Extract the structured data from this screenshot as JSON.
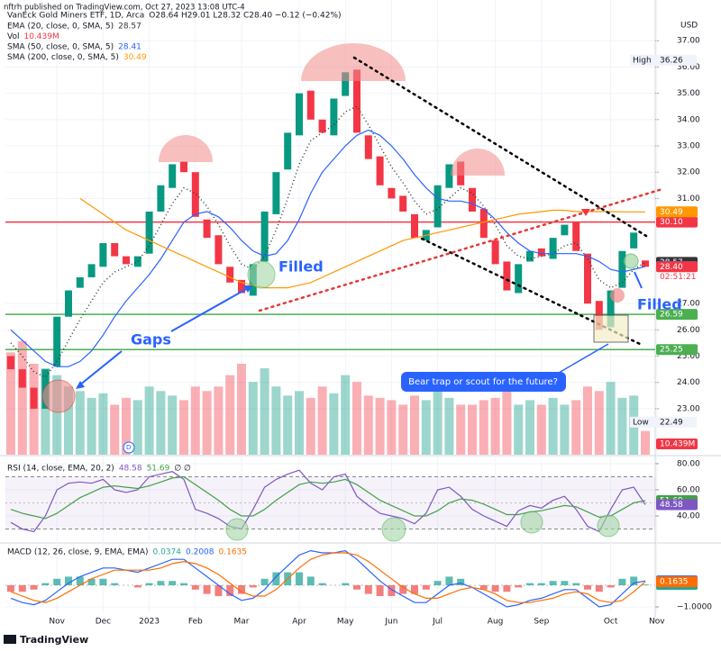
{
  "publisher": "nftrh published on TradingView.com, Oct 27, 2023 13:08 UTC-4",
  "footer": "TradingView",
  "annotations": [
    "Gaps",
    "Filled",
    "Filled",
    "Bear trap or scout for the future?"
  ],
  "chart_data": [
    {
      "type": "candlestick",
      "title": "VanEck Gold Miners ETF, 1D, Arca",
      "ohlc_label": "O28.64 H29.01 L28.32 C28.40 −0.12 (−0.42%)",
      "currency": "USD",
      "countdown": "02:51:21",
      "categories": [
        null,
        null,
        null,
        null,
        "Nov",
        null,
        null,
        null,
        "Dec",
        null,
        null,
        null,
        "2023",
        null,
        null,
        null,
        "Feb",
        null,
        null,
        null,
        "Mar",
        null,
        null,
        null,
        null,
        "Apr",
        null,
        null,
        null,
        "May",
        null,
        null,
        null,
        "Jun",
        null,
        null,
        null,
        "Jul",
        null,
        null,
        null,
        null,
        "Aug",
        null,
        null,
        null,
        "Sep",
        null,
        null,
        null,
        null,
        null,
        "Oct",
        null,
        null,
        null,
        "Nov"
      ],
      "open": [
        25.0,
        24.5,
        23.8,
        23.0,
        24.6,
        26.5,
        27.6,
        28.0,
        28.4,
        29.3,
        28.8,
        28.4,
        28.9,
        30.5,
        31.4,
        32.4,
        32.0,
        30.2,
        29.6,
        28.4,
        27.9,
        27.3,
        28.6,
        30.4,
        32.1,
        33.4,
        35.1,
        34.0,
        33.4,
        34.9,
        35.9,
        33.4,
        32.6,
        31.4,
        31.1,
        30.4,
        29.4,
        29.9,
        31.4,
        32.4,
        31.4,
        30.6,
        29.4,
        28.6,
        27.4,
        28.6,
        29.1,
        28.7,
        29.6,
        30.1,
        28.9,
        27.1,
        26.1,
        27.6,
        29.1,
        28.64,
        null
      ],
      "close": [
        24.5,
        23.8,
        23.0,
        24.5,
        26.5,
        27.5,
        28.0,
        28.5,
        29.3,
        28.8,
        28.5,
        28.8,
        30.5,
        31.5,
        32.3,
        32.0,
        30.3,
        29.5,
        28.5,
        27.8,
        27.4,
        28.5,
        30.5,
        32.0,
        33.5,
        35.0,
        34.0,
        33.5,
        34.8,
        35.8,
        33.5,
        32.5,
        31.5,
        31.0,
        30.5,
        29.5,
        29.8,
        31.5,
        32.3,
        31.5,
        30.5,
        29.5,
        28.5,
        27.5,
        28.5,
        29.0,
        28.8,
        29.5,
        30.0,
        29.0,
        27.0,
        26.0,
        27.5,
        29.0,
        29.7,
        28.4,
        null
      ],
      "close_labels": [
        null,
        null,
        null,
        null,
        null,
        null,
        null,
        null,
        null,
        null,
        null,
        null,
        null,
        null,
        null,
        null,
        null,
        null,
        null,
        null,
        null,
        null,
        null,
        null,
        null,
        null,
        null,
        null,
        null,
        null,
        null,
        null,
        null,
        null,
        null,
        null,
        null,
        null,
        null,
        null,
        null,
        null,
        null,
        null,
        null,
        null,
        null,
        null,
        null,
        null,
        null,
        null,
        null,
        null,
        null,
        "28.40",
        null
      ],
      "up_color": "#089981",
      "down_color": "#f23645",
      "series": [
        {
          "name": "EMA (20, close, 0, SMA, 5)",
          "color": "#333333",
          "style": "dotted",
          "values": [
            25.5,
            25.0,
            24.4,
            24.2,
            24.8,
            25.6,
            26.4,
            27.1,
            27.8,
            28.2,
            28.4,
            28.6,
            29.2,
            30.0,
            30.8,
            31.4,
            31.2,
            30.7,
            30.0,
            29.2,
            28.5,
            28.3,
            28.8,
            29.8,
            31.0,
            32.3,
            33.2,
            33.5,
            33.8,
            34.3,
            34.5,
            33.8,
            33.0,
            32.2,
            31.6,
            30.9,
            30.4,
            30.6,
            31.0,
            31.4,
            31.2,
            30.7,
            30.0,
            29.2,
            28.8,
            28.7,
            28.8,
            28.9,
            29.2,
            29.3,
            28.7,
            27.9,
            27.6,
            27.8,
            28.3,
            28.57,
            null
          ]
        },
        {
          "name": "SMA (50, close, 0, SMA, 5)",
          "color": "#2962ff",
          "style": "solid",
          "values": [
            26.0,
            25.6,
            25.2,
            24.8,
            24.6,
            24.6,
            24.8,
            25.2,
            25.8,
            26.5,
            27.1,
            27.6,
            28.1,
            28.7,
            29.4,
            30.1,
            30.4,
            30.5,
            30.3,
            29.9,
            29.4,
            29.0,
            28.8,
            28.9,
            29.4,
            30.2,
            31.2,
            32.0,
            32.5,
            33.0,
            33.4,
            33.6,
            33.4,
            33.0,
            32.5,
            31.9,
            31.4,
            31.0,
            30.9,
            30.9,
            30.8,
            30.6,
            30.2,
            29.7,
            29.3,
            29.0,
            28.9,
            28.9,
            28.9,
            28.9,
            28.8,
            28.6,
            28.3,
            28.2,
            28.3,
            28.41,
            null
          ]
        },
        {
          "name": "SMA (200, close, 0, SMA, 5)",
          "color": "#ff9800",
          "style": "solid",
          "values": [
            null,
            null,
            null,
            null,
            null,
            null,
            31.0,
            30.7,
            30.4,
            30.1,
            29.8,
            29.6,
            29.4,
            29.2,
            29.0,
            28.8,
            28.6,
            28.4,
            28.2,
            28.0,
            27.8,
            27.7,
            27.6,
            27.6,
            27.6,
            27.7,
            27.8,
            28.0,
            28.2,
            28.4,
            28.6,
            28.8,
            29.0,
            29.2,
            29.4,
            29.5,
            29.6,
            29.7,
            29.8,
            29.9,
            30.0,
            30.1,
            30.2,
            30.3,
            30.4,
            30.45,
            30.5,
            30.55,
            30.55,
            30.5,
            30.5,
            30.5,
            30.5,
            30.49,
            30.49,
            30.49,
            null
          ]
        }
      ],
      "volume": {
        "name": "Vol",
        "ylim": [
          0,
          200
        ],
        "values": [
          45,
          50,
          40,
          38,
          35,
          30,
          28,
          25,
          27,
          22,
          25,
          24,
          30,
          28,
          26,
          24,
          30,
          28,
          30,
          35,
          40,
          32,
          38,
          30,
          26,
          28,
          25,
          30,
          27,
          35,
          32,
          26,
          25,
          24,
          22,
          26,
          24,
          28,
          25,
          22,
          22,
          24,
          25,
          28,
          22,
          24,
          22,
          25,
          22,
          24,
          30,
          28,
          32,
          25,
          26,
          10.439,
          null
        ],
        "value_labels": [
          null,
          null,
          null,
          null,
          null,
          null,
          null,
          null,
          null,
          null,
          null,
          null,
          null,
          null,
          null,
          null,
          null,
          null,
          null,
          null,
          null,
          null,
          null,
          null,
          null,
          null,
          null,
          null,
          null,
          null,
          null,
          null,
          null,
          null,
          null,
          null,
          null,
          null,
          null,
          null,
          null,
          null,
          null,
          null,
          null,
          null,
          null,
          null,
          null,
          null,
          null,
          null,
          null,
          null,
          null,
          "10.439M",
          null
        ]
      },
      "high": {
        "label": "High",
        "value": 36.26
      },
      "low": {
        "label": "Low",
        "value": 22.49
      },
      "hlines": [
        {
          "value": 30.1,
          "label": "30.10",
          "color": "#f23645"
        },
        {
          "value": 26.59,
          "label": "26.59",
          "color": "#4caf50"
        },
        {
          "value": 25.25,
          "label": "25.25",
          "color": "#4caf50"
        }
      ],
      "ylim": [
        21.25,
        38.55
      ],
      "yticks": [
        {
          "value": 37,
          "label": "37.00"
        },
        {
          "value": 36,
          "label": "36.00"
        },
        {
          "value": 35,
          "label": "35.00"
        },
        {
          "value": 34,
          "label": "34.00"
        },
        {
          "value": 33,
          "label": "33.00"
        },
        {
          "value": 32,
          "label": "32.00"
        },
        {
          "value": 31,
          "label": "31.00"
        },
        {
          "value": 27,
          "label": "27.00"
        },
        {
          "value": 26,
          "label": "26.00"
        },
        {
          "value": 25,
          "label": "25.00"
        },
        {
          "value": 24,
          "label": "24.00"
        },
        {
          "value": 23,
          "label": "23.00"
        }
      ],
      "grid": true
    },
    {
      "type": "line",
      "title": "RSI (14, close, EMA, 20, 2)",
      "na_marks": "∅ ∅",
      "ylim": [
        20,
        84.8
      ],
      "yticks": [
        {
          "value": 80,
          "label": "80.00"
        },
        {
          "value": 60,
          "label": "60.00"
        },
        {
          "value": 40,
          "label": "40.00"
        }
      ],
      "band": [
        30,
        70
      ],
      "midline": 50,
      "series": [
        {
          "color": "#7e57c2",
          "values": [
            35,
            30,
            28,
            40,
            60,
            65,
            66,
            65,
            68,
            60,
            58,
            60,
            70,
            72,
            74,
            68,
            45,
            42,
            38,
            32,
            30,
            45,
            62,
            68,
            72,
            75,
            65,
            60,
            70,
            72,
            55,
            48,
            42,
            40,
            38,
            34,
            42,
            60,
            62,
            55,
            45,
            40,
            36,
            32,
            44,
            48,
            46,
            52,
            55,
            45,
            32,
            28,
            45,
            60,
            62,
            48.58,
            null
          ]
        },
        {
          "color": "#43a047",
          "values": [
            45,
            42,
            40,
            38,
            42,
            48,
            54,
            58,
            62,
            63,
            62,
            61,
            63,
            66,
            69,
            70,
            64,
            58,
            52,
            45,
            40,
            40,
            45,
            52,
            58,
            64,
            66,
            65,
            66,
            68,
            64,
            58,
            52,
            48,
            44,
            40,
            40,
            44,
            50,
            53,
            52,
            49,
            45,
            41,
            41,
            43,
            44,
            46,
            48,
            47,
            43,
            39,
            40,
            45,
            50,
            51.69,
            null
          ]
        }
      ]
    },
    {
      "type": "macd",
      "title": "MACD (12, 26, close, 9, EMA, EMA)",
      "ylim": [
        -1.25,
        1.875
      ],
      "yticks": [
        {
          "value": -1,
          "label": "−1.0000"
        }
      ],
      "baseline": 0,
      "series": [
        {
          "type": "bar",
          "color": "#26a69a",
          "neg_color": "#ef5350",
          "values": [
            -0.3,
            -0.3,
            -0.2,
            0.1,
            0.3,
            0.4,
            0.4,
            0.3,
            0.3,
            0.1,
            0.0,
            -0.1,
            0.1,
            0.2,
            0.2,
            0.1,
            -0.2,
            -0.4,
            -0.5,
            -0.5,
            -0.4,
            -0.1,
            0.3,
            0.6,
            0.6,
            0.6,
            0.4,
            0.1,
            0.0,
            0.1,
            -0.2,
            -0.4,
            -0.5,
            -0.5,
            -0.4,
            -0.4,
            -0.2,
            0.2,
            0.4,
            0.3,
            0.0,
            -0.2,
            -0.3,
            -0.3,
            -0.1,
            0.1,
            0.1,
            0.2,
            0.2,
            0.1,
            -0.2,
            -0.3,
            -0.1,
            0.3,
            0.4,
            0.0374,
            null
          ]
        },
        {
          "type": "line",
          "color": "#2962ff",
          "values": [
            -0.6,
            -0.8,
            -0.9,
            -0.7,
            -0.3,
            0.1,
            0.4,
            0.6,
            0.8,
            0.8,
            0.7,
            0.6,
            0.8,
            1.0,
            1.2,
            1.2,
            0.8,
            0.4,
            0.0,
            -0.4,
            -0.7,
            -0.6,
            -0.2,
            0.4,
            0.9,
            1.4,
            1.6,
            1.5,
            1.5,
            1.6,
            1.2,
            0.7,
            0.2,
            -0.2,
            -0.5,
            -0.8,
            -0.8,
            -0.4,
            0.0,
            0.1,
            -0.1,
            -0.4,
            -0.7,
            -1.0,
            -0.9,
            -0.7,
            -0.6,
            -0.4,
            -0.2,
            -0.2,
            -0.6,
            -1.0,
            -0.9,
            -0.4,
            0.1,
            0.2008,
            null
          ]
        },
        {
          "type": "line",
          "color": "#ff6d00",
          "values": [
            -0.3,
            -0.5,
            -0.7,
            -0.8,
            -0.6,
            -0.3,
            0.0,
            0.3,
            0.5,
            0.7,
            0.7,
            0.7,
            0.7,
            0.8,
            1.0,
            1.1,
            1.0,
            0.8,
            0.5,
            0.1,
            -0.3,
            -0.5,
            -0.5,
            -0.2,
            0.3,
            0.8,
            1.2,
            1.4,
            1.5,
            1.5,
            1.4,
            1.1,
            0.7,
            0.3,
            -0.1,
            -0.4,
            -0.6,
            -0.6,
            -0.4,
            -0.2,
            -0.1,
            -0.2,
            -0.4,
            -0.7,
            -0.8,
            -0.8,
            -0.7,
            -0.6,
            -0.4,
            -0.3,
            -0.4,
            -0.7,
            -0.8,
            -0.7,
            -0.3,
            0.1635,
            null
          ]
        }
      ]
    }
  ]
}
